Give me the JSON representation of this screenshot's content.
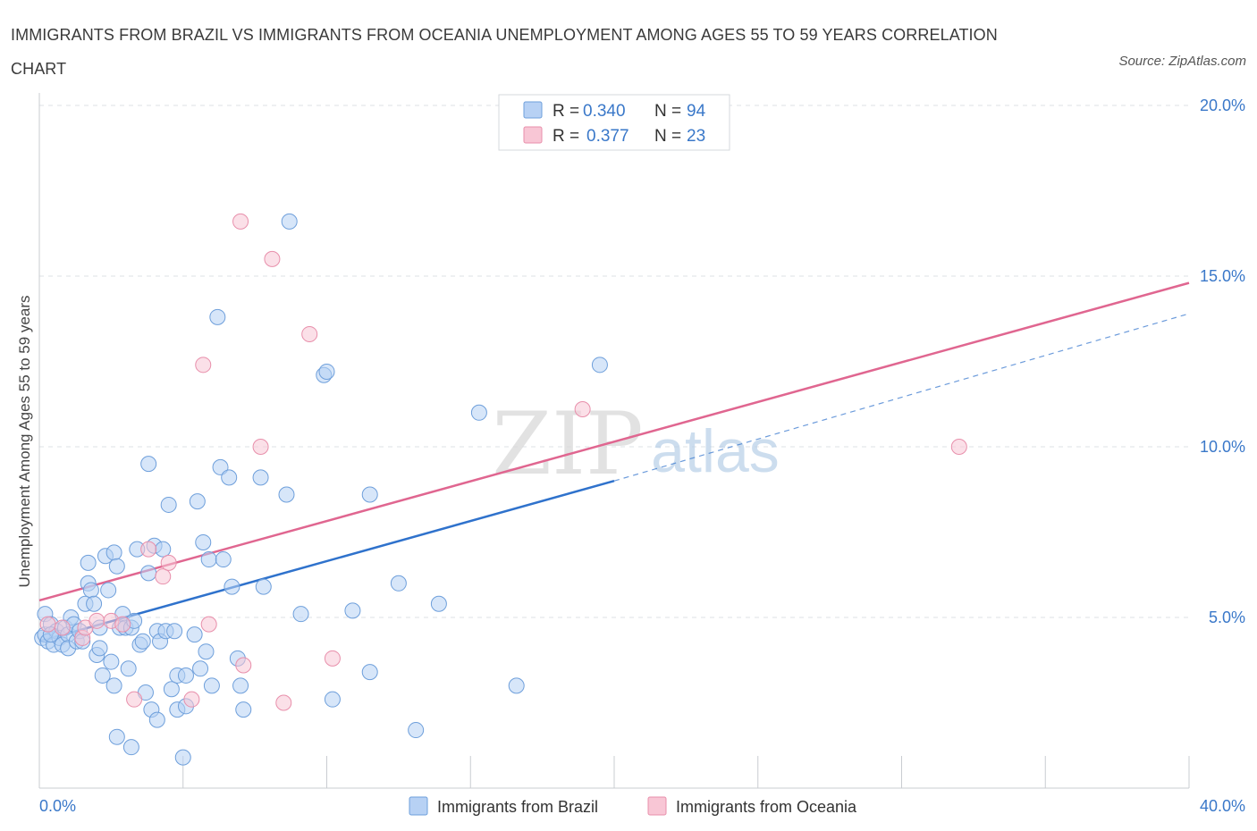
{
  "header": {
    "title": "IMMIGRANTS FROM BRAZIL VS IMMIGRANTS FROM OCEANIA UNEMPLOYMENT AMONG AGES 55 TO 59 YEARS CORRELATION CHART",
    "source": "Source: ZipAtlas.com"
  },
  "watermark": {
    "zip": "ZIP",
    "atlas": "atlas"
  },
  "colors": {
    "brazil_fill": "#b7d1f4",
    "brazil_stroke": "#6e9fdb",
    "brazil_line": "#2f72cc",
    "oceania_fill": "#f8c6d5",
    "oceania_stroke": "#e88fab",
    "oceania_line": "#e06690",
    "value_text": "#3a78c9",
    "grid": "#dde1e6"
  },
  "legend": {
    "rows": [
      {
        "r_label": "R = ",
        "r_value": "0.340",
        "n_label": "N = ",
        "n_value": "94"
      },
      {
        "r_label": "R = ",
        "r_value": "0.377",
        "n_label": "N = ",
        "n_value": "23"
      }
    ]
  },
  "chart_data": {
    "type": "scatter",
    "title": "IMMIGRANTS FROM BRAZIL VS IMMIGRANTS FROM OCEANIA UNEMPLOYMENT AMONG AGES 55 TO 59 YEARS CORRELATION CHART",
    "xlabel": "",
    "ylabel": "Unemployment Among Ages 55 to 59 years",
    "xlim": [
      0,
      40
    ],
    "ylim": [
      0,
      20
    ],
    "x_tick_labels": [
      "0.0%",
      "40.0%"
    ],
    "y_ticks": [
      5,
      10,
      15,
      20
    ],
    "y_tick_labels": [
      "5.0%",
      "10.0%",
      "15.0%",
      "20.0%"
    ],
    "grid": true,
    "legend_placement": "top-center",
    "series": [
      {
        "name": "Immigrants from Brazil",
        "r": 0.34,
        "n": 94,
        "trend": {
          "x0": 0,
          "y0": 4.3,
          "x1": 20,
          "y1": 9.0,
          "dashed_to_x": 40,
          "dashed_to_y": 13.9
        },
        "points": [
          [
            0.1,
            4.4
          ],
          [
            0.2,
            4.5
          ],
          [
            0.3,
            4.3
          ],
          [
            0.2,
            5.1
          ],
          [
            0.4,
            4.8
          ],
          [
            0.5,
            4.2
          ],
          [
            0.6,
            4.6
          ],
          [
            0.7,
            4.4
          ],
          [
            0.8,
            4.2
          ],
          [
            0.9,
            4.7
          ],
          [
            1.0,
            4.5
          ],
          [
            1.0,
            4.1
          ],
          [
            1.1,
            5.0
          ],
          [
            1.2,
            4.8
          ],
          [
            1.3,
            4.3
          ],
          [
            1.4,
            4.6
          ],
          [
            1.5,
            4.3
          ],
          [
            1.6,
            5.4
          ],
          [
            1.7,
            6.0
          ],
          [
            1.7,
            6.6
          ],
          [
            1.8,
            5.8
          ],
          [
            1.9,
            5.4
          ],
          [
            2.0,
            3.9
          ],
          [
            2.1,
            4.7
          ],
          [
            2.1,
            4.1
          ],
          [
            2.2,
            3.3
          ],
          [
            2.3,
            6.8
          ],
          [
            2.4,
            5.8
          ],
          [
            2.5,
            3.7
          ],
          [
            2.6,
            6.9
          ],
          [
            2.6,
            3.0
          ],
          [
            2.7,
            6.5
          ],
          [
            2.7,
            1.5
          ],
          [
            2.8,
            4.7
          ],
          [
            2.9,
            5.1
          ],
          [
            3.0,
            4.7
          ],
          [
            3.1,
            3.5
          ],
          [
            3.2,
            4.7
          ],
          [
            3.2,
            1.2
          ],
          [
            3.3,
            4.9
          ],
          [
            3.4,
            7.0
          ],
          [
            3.5,
            4.2
          ],
          [
            3.6,
            4.3
          ],
          [
            3.7,
            2.8
          ],
          [
            3.8,
            6.3
          ],
          [
            3.8,
            9.5
          ],
          [
            3.9,
            2.3
          ],
          [
            4.0,
            7.1
          ],
          [
            4.1,
            4.6
          ],
          [
            4.1,
            2.0
          ],
          [
            4.2,
            4.3
          ],
          [
            4.3,
            7.0
          ],
          [
            4.4,
            4.6
          ],
          [
            4.5,
            8.3
          ],
          [
            4.6,
            2.9
          ],
          [
            4.7,
            4.6
          ],
          [
            4.8,
            3.3
          ],
          [
            4.8,
            2.3
          ],
          [
            5.0,
            0.9
          ],
          [
            5.1,
            3.3
          ],
          [
            5.1,
            2.4
          ],
          [
            5.4,
            4.5
          ],
          [
            5.5,
            8.4
          ],
          [
            5.6,
            3.5
          ],
          [
            5.7,
            7.2
          ],
          [
            5.8,
            4.0
          ],
          [
            5.9,
            6.7
          ],
          [
            6.0,
            3.0
          ],
          [
            6.2,
            13.8
          ],
          [
            6.3,
            9.4
          ],
          [
            6.4,
            6.7
          ],
          [
            6.6,
            9.1
          ],
          [
            6.7,
            5.9
          ],
          [
            6.9,
            3.8
          ],
          [
            7.0,
            3.0
          ],
          [
            7.1,
            2.3
          ],
          [
            7.7,
            9.1
          ],
          [
            7.8,
            5.9
          ],
          [
            8.6,
            8.6
          ],
          [
            8.7,
            16.6
          ],
          [
            9.1,
            5.1
          ],
          [
            9.9,
            12.1
          ],
          [
            10.0,
            12.2
          ],
          [
            10.2,
            2.6
          ],
          [
            10.9,
            5.2
          ],
          [
            11.5,
            3.4
          ],
          [
            11.5,
            8.6
          ],
          [
            12.5,
            6.0
          ],
          [
            13.1,
            1.7
          ],
          [
            13.9,
            5.4
          ],
          [
            15.3,
            11.0
          ],
          [
            16.6,
            3.0
          ],
          [
            19.5,
            12.4
          ],
          [
            0.4,
            4.5
          ]
        ]
      },
      {
        "name": "Immigrants from Oceania",
        "r": 0.377,
        "n": 23,
        "trend": {
          "x0": 0,
          "y0": 5.5,
          "x1": 40,
          "y1": 14.8
        },
        "points": [
          [
            0.3,
            4.8
          ],
          [
            0.8,
            4.7
          ],
          [
            1.5,
            4.4
          ],
          [
            1.6,
            4.7
          ],
          [
            2.0,
            4.9
          ],
          [
            2.5,
            4.9
          ],
          [
            2.9,
            4.8
          ],
          [
            3.3,
            2.6
          ],
          [
            3.8,
            7.0
          ],
          [
            4.3,
            6.2
          ],
          [
            4.5,
            6.6
          ],
          [
            5.3,
            2.6
          ],
          [
            5.7,
            12.4
          ],
          [
            5.9,
            4.8
          ],
          [
            7.0,
            16.6
          ],
          [
            7.1,
            3.6
          ],
          [
            7.7,
            10.0
          ],
          [
            8.1,
            15.5
          ],
          [
            8.5,
            2.5
          ],
          [
            9.4,
            13.3
          ],
          [
            10.2,
            3.8
          ],
          [
            18.9,
            11.1
          ],
          [
            32.0,
            10.0
          ]
        ]
      }
    ]
  },
  "bottom_legend": {
    "items": [
      {
        "label": "Immigrants from Brazil"
      },
      {
        "label": "Immigrants from Oceania"
      }
    ]
  }
}
